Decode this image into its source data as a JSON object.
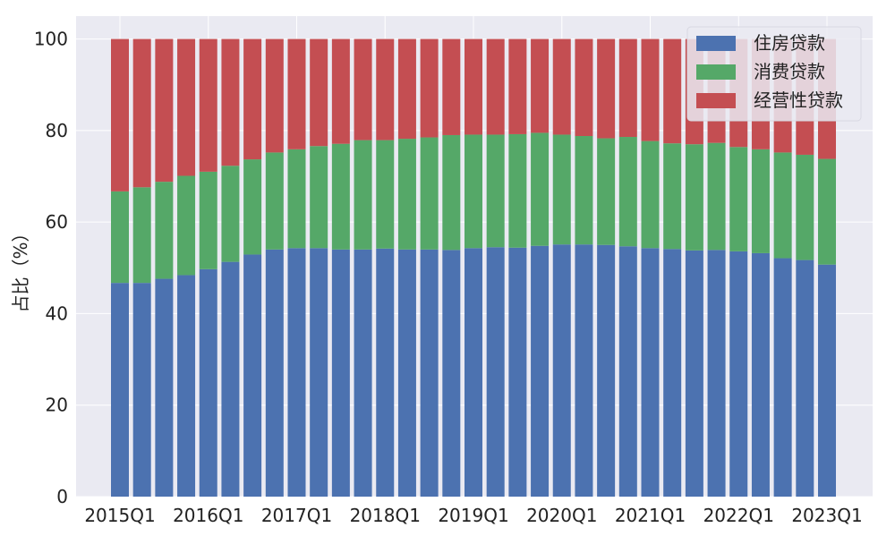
{
  "chart_data": {
    "type": "bar",
    "stacked": true,
    "ylabel": "占比（%）",
    "xlabel": "",
    "ylim": [
      0,
      105
    ],
    "yticks": [
      0,
      20,
      40,
      60,
      80,
      100
    ],
    "grid": true,
    "legend_position": "top-right",
    "categories": [
      "2015Q1",
      "2015Q2",
      "2015Q3",
      "2015Q4",
      "2016Q1",
      "2016Q2",
      "2016Q3",
      "2016Q4",
      "2017Q1",
      "2017Q2",
      "2017Q3",
      "2017Q4",
      "2018Q1",
      "2018Q2",
      "2018Q3",
      "2018Q4",
      "2019Q1",
      "2019Q2",
      "2019Q3",
      "2019Q4",
      "2020Q1",
      "2020Q2",
      "2020Q3",
      "2020Q4",
      "2021Q1",
      "2021Q2",
      "2021Q3",
      "2021Q4",
      "2022Q1",
      "2022Q2",
      "2022Q3",
      "2022Q4",
      "2023Q1"
    ],
    "xtick_labels": [
      "2015Q1",
      "2016Q1",
      "2017Q1",
      "2018Q1",
      "2019Q1",
      "2020Q1",
      "2021Q1",
      "2022Q1",
      "2023Q1"
    ],
    "series": [
      {
        "name": "住房贷款",
        "color": "#4c72b0",
        "values": [
          46.7,
          46.7,
          47.6,
          48.4,
          49.7,
          51.3,
          52.9,
          54.0,
          54.3,
          54.3,
          54.0,
          54.0,
          54.2,
          54.0,
          54.0,
          53.9,
          54.3,
          54.5,
          54.4,
          54.8,
          55.1,
          55.1,
          55.0,
          54.7,
          54.3,
          54.1,
          53.8,
          53.9,
          53.6,
          53.2,
          52.1,
          51.7,
          50.7
        ]
      },
      {
        "name": "消费贷款",
        "color": "#55a868",
        "values": [
          20.0,
          20.9,
          21.2,
          21.7,
          21.3,
          21.0,
          20.8,
          21.2,
          21.6,
          22.3,
          23.1,
          23.9,
          23.7,
          24.2,
          24.5,
          25.1,
          24.8,
          24.6,
          24.8,
          24.7,
          24.0,
          23.7,
          23.3,
          23.9,
          23.4,
          23.1,
          23.2,
          23.4,
          22.8,
          22.7,
          23.1,
          23.0,
          23.1
        ]
      },
      {
        "name": "经营性贷款",
        "color": "#c44e52",
        "values": [
          33.3,
          32.4,
          31.2,
          29.9,
          29.0,
          27.7,
          26.3,
          24.8,
          24.1,
          23.4,
          22.9,
          22.1,
          22.1,
          21.8,
          21.5,
          21.0,
          20.9,
          20.9,
          20.8,
          20.5,
          20.9,
          21.2,
          21.7,
          21.4,
          22.3,
          22.8,
          23.0,
          22.7,
          23.6,
          24.1,
          24.8,
          25.3,
          26.2
        ]
      }
    ]
  }
}
